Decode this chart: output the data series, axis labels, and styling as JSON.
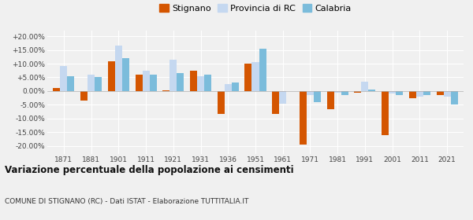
{
  "years": [
    1871,
    1881,
    1901,
    1911,
    1921,
    1931,
    1936,
    1951,
    1961,
    1971,
    1981,
    1991,
    2001,
    2011,
    2021
  ],
  "stignano": [
    1.0,
    -3.5,
    11.0,
    6.0,
    0.3,
    7.5,
    -8.5,
    10.0,
    -8.5,
    -19.5,
    -6.5,
    -0.5,
    -16.0,
    -2.5,
    -1.5
  ],
  "provincia_rc": [
    9.0,
    6.0,
    16.5,
    7.5,
    11.5,
    5.5,
    2.5,
    10.5,
    -4.5,
    -1.5,
    -0.5,
    3.5,
    -1.0,
    -2.0,
    -2.0
  ],
  "calabria": [
    5.5,
    5.0,
    12.0,
    6.0,
    6.5,
    6.0,
    3.0,
    15.5,
    0.0,
    -4.0,
    -1.5,
    0.5,
    -1.5,
    -1.5,
    -5.0
  ],
  "color_stignano": "#d45500",
  "color_provincia": "#c5d8f0",
  "color_calabria": "#7bbcdb",
  "title": "Variazione percentuale della popolazione ai censimenti",
  "subtitle": "COMUNE DI STIGNANO (RC) - Dati ISTAT - Elaborazione TUTTITALIA.IT",
  "yticks": [
    -20,
    -15,
    -10,
    -5,
    0,
    5,
    10,
    15,
    20
  ],
  "ylim": [
    -23,
    22
  ],
  "background_color": "#f0f0f0",
  "legend_labels": [
    "Stignano",
    "Provincia di RC",
    "Calabria"
  ],
  "bar_width": 0.26
}
